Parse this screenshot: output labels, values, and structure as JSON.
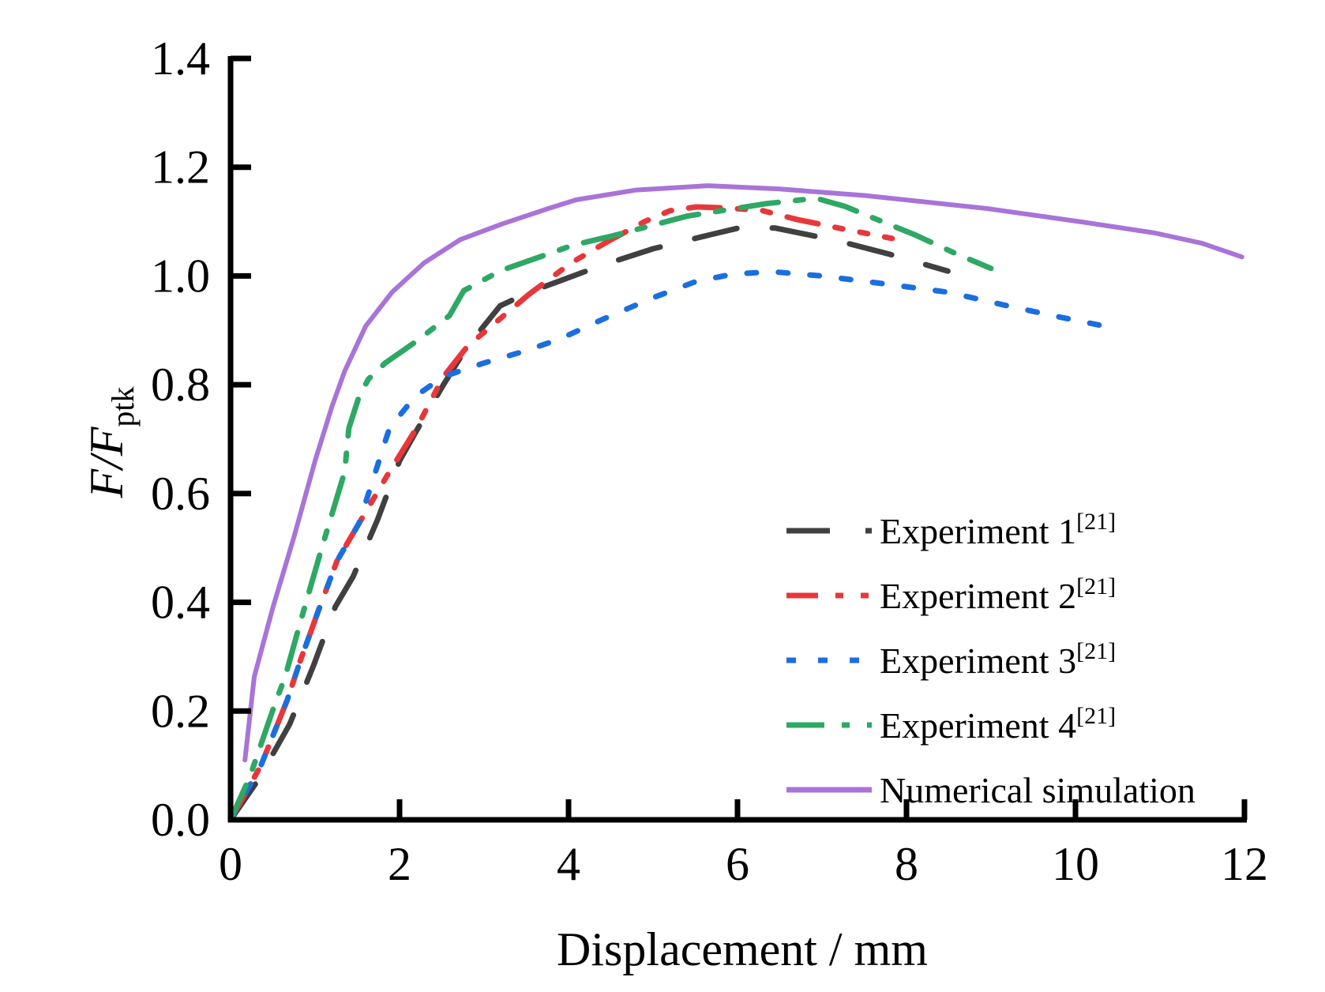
{
  "chart_data": {
    "type": "line",
    "title": "",
    "xlabel": "Displacement / mm",
    "ylabel": {
      "main": "F/F",
      "subscript": "ptk"
    },
    "xlim": [
      0,
      12
    ],
    "ylim": [
      0,
      1.4
    ],
    "xticks": [
      0,
      2,
      4,
      6,
      8,
      10,
      12
    ],
    "xtick_labels": [
      "0",
      "2",
      "4",
      "6",
      "8",
      "10",
      "12"
    ],
    "yticks": [
      0,
      0.2,
      0.4,
      0.6,
      0.8,
      1.0,
      1.2,
      1.4
    ],
    "ytick_labels": [
      "0.0",
      "0.2",
      "0.4",
      "0.6",
      "0.8",
      "1.0",
      "1.2",
      "1.4"
    ],
    "grid": false,
    "legend_position": "bottom-right",
    "series": [
      {
        "name": "Experiment 1",
        "ref": "[21]",
        "color": "#404040",
        "style": "dash",
        "x": [
          0,
          0.33,
          0.7,
          0.98,
          1.24,
          1.45,
          1.74,
          2.0,
          2.18,
          2.52,
          2.8,
          3.19,
          3.53,
          3.88,
          4.4,
          5.0,
          5.68,
          6.06,
          6.45,
          7.18,
          7.8,
          8.49
        ],
        "y": [
          0,
          0.074,
          0.176,
          0.283,
          0.392,
          0.447,
          0.552,
          0.66,
          0.71,
          0.8,
          0.87,
          0.945,
          0.97,
          0.99,
          1.02,
          1.05,
          1.076,
          1.09,
          1.088,
          1.065,
          1.04,
          1.009
        ]
      },
      {
        "name": "Experiment 2",
        "ref": "[21]",
        "color": "#e8373a",
        "style": "dash-dot-dot",
        "x": [
          0,
          0.36,
          0.67,
          0.82,
          1.04,
          1.26,
          1.52,
          1.88,
          2.2,
          2.52,
          2.8,
          3.53,
          4.03,
          4.47,
          4.9,
          5.2,
          5.51,
          5.9,
          6.3,
          6.7,
          7.2,
          7.83
        ],
        "y": [
          0,
          0.1,
          0.22,
          0.29,
          0.385,
          0.476,
          0.545,
          0.64,
          0.72,
          0.815,
          0.87,
          0.966,
          1.024,
          1.064,
          1.1,
          1.12,
          1.127,
          1.125,
          1.12,
          1.104,
          1.088,
          1.069
        ]
      },
      {
        "name": "Experiment 3",
        "ref": "[21]",
        "color": "#1a6ee0",
        "style": "dot",
        "x": [
          0,
          0.36,
          0.67,
          0.82,
          1.04,
          1.26,
          1.52,
          1.88,
          2.18,
          2.52,
          3.0,
          3.44,
          3.88,
          4.4,
          5.0,
          5.51,
          5.93,
          6.4,
          7.0,
          7.77,
          8.5,
          9.14,
          9.8,
          10.43
        ],
        "y": [
          0,
          0.1,
          0.22,
          0.29,
          0.385,
          0.476,
          0.545,
          0.72,
          0.778,
          0.815,
          0.84,
          0.86,
          0.883,
          0.92,
          0.96,
          0.99,
          1.003,
          1.008,
          1.0,
          0.985,
          0.97,
          0.947,
          0.925,
          0.905
        ]
      },
      {
        "name": "Experiment 4",
        "ref": "[21]",
        "color": "#2ea864",
        "style": "dash-dot",
        "x": [
          0,
          0.23,
          0.54,
          0.64,
          0.82,
          1.07,
          1.35,
          1.4,
          1.52,
          1.63,
          1.83,
          2.2,
          2.59,
          2.76,
          3.2,
          4.06,
          4.5,
          5.4,
          6.34,
          6.93,
          7.27,
          8.11,
          8.6,
          9.0
        ],
        "y": [
          0,
          0.08,
          0.22,
          0.26,
          0.36,
          0.495,
          0.64,
          0.72,
          0.778,
          0.81,
          0.84,
          0.88,
          0.927,
          0.973,
          1.01,
          1.057,
          1.073,
          1.11,
          1.133,
          1.143,
          1.128,
          1.075,
          1.04,
          1.014
        ]
      },
      {
        "name": "Numerical simulation",
        "ref": "",
        "color": "#a874d8",
        "style": "solid",
        "x": [
          0.17,
          0.28,
          0.5,
          0.75,
          1.0,
          1.2,
          1.35,
          1.6,
          1.91,
          2.29,
          2.72,
          3.22,
          3.78,
          4.09,
          4.8,
          5.65,
          6.5,
          7.5,
          8.95,
          10.05,
          10.94,
          11.5,
          11.97
        ],
        "y": [
          0.11,
          0.263,
          0.39,
          0.52,
          0.66,
          0.76,
          0.825,
          0.908,
          0.97,
          1.024,
          1.067,
          1.096,
          1.125,
          1.14,
          1.158,
          1.166,
          1.16,
          1.148,
          1.124,
          1.1,
          1.079,
          1.06,
          1.035
        ]
      }
    ]
  }
}
